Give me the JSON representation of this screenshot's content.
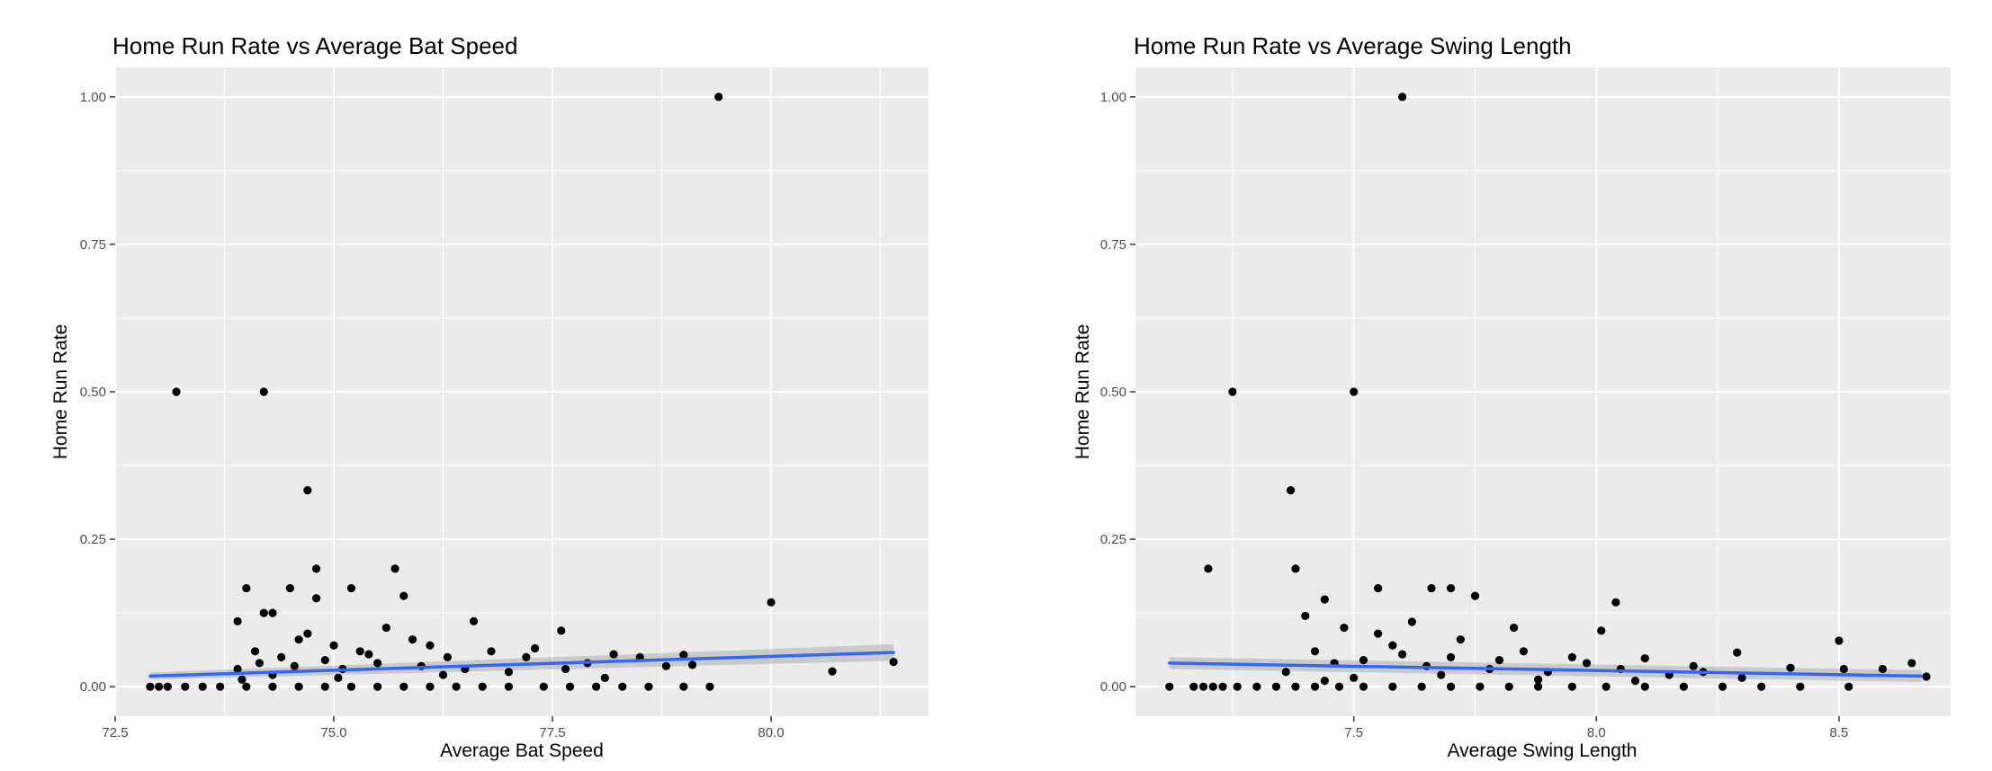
{
  "chart_data": [
    {
      "type": "scatter",
      "title": "Home Run Rate vs Average Bat Speed",
      "xlabel": "Average Bat Speed",
      "ylabel": "Home Run Rate",
      "xlim": [
        72.5,
        81.8
      ],
      "ylim": [
        -0.05,
        1.05
      ],
      "xticks": [
        "72.5",
        "75.0",
        "77.5",
        "80.0"
      ],
      "yticks": [
        "0.00",
        "0.25",
        "0.50",
        "0.75",
        "1.00"
      ],
      "grid": true,
      "fit_line": {
        "x": [
          72.9,
          81.4
        ],
        "y": [
          0.018,
          0.058
        ],
        "se_band": [
          0.006,
          0.014
        ]
      },
      "points": [
        [
          73.2,
          0.5
        ],
        [
          74.2,
          0.5
        ],
        [
          74.7,
          0.333
        ],
        [
          79.4,
          1.0
        ],
        [
          74.8,
          0.2
        ],
        [
          75.7,
          0.2
        ],
        [
          75.2,
          0.167
        ],
        [
          74.0,
          0.167
        ],
        [
          74.5,
          0.167
        ],
        [
          75.8,
          0.154
        ],
        [
          74.8,
          0.15
        ],
        [
          80.0,
          0.143
        ],
        [
          74.2,
          0.125
        ],
        [
          74.3,
          0.125
        ],
        [
          73.9,
          0.111
        ],
        [
          76.6,
          0.111
        ],
        [
          77.6,
          0.095
        ],
        [
          80.7,
          0.026
        ],
        [
          81.4,
          0.042
        ],
        [
          79.0,
          0.054
        ],
        [
          79.1,
          0.037
        ],
        [
          78.5,
          0.05
        ],
        [
          78.2,
          0.055
        ],
        [
          74.1,
          0.06
        ],
        [
          74.4,
          0.05
        ],
        [
          74.6,
          0.08
        ],
        [
          75.0,
          0.07
        ],
        [
          75.3,
          0.06
        ],
        [
          75.9,
          0.08
        ],
        [
          76.3,
          0.05
        ],
        [
          76.8,
          0.06
        ],
        [
          77.2,
          0.05
        ],
        [
          77.9,
          0.04
        ],
        [
          78.8,
          0.035
        ],
        [
          74.9,
          0.045
        ],
        [
          75.5,
          0.04
        ],
        [
          76.0,
          0.035
        ],
        [
          76.5,
          0.03
        ],
        [
          77.0,
          0.025
        ],
        [
          75.1,
          0.03
        ],
        [
          74.3,
          0.02
        ],
        [
          73.9,
          0.03
        ],
        [
          72.9,
          0.0
        ],
        [
          73.0,
          0.0
        ],
        [
          73.1,
          0.0
        ],
        [
          73.3,
          0.0
        ],
        [
          73.5,
          0.0
        ],
        [
          73.7,
          0.0
        ],
        [
          74.0,
          0.0
        ],
        [
          74.3,
          0.0
        ],
        [
          74.6,
          0.0
        ],
        [
          74.9,
          0.0
        ],
        [
          75.2,
          0.0
        ],
        [
          75.5,
          0.0
        ],
        [
          75.8,
          0.0
        ],
        [
          76.1,
          0.0
        ],
        [
          76.4,
          0.0
        ],
        [
          76.7,
          0.0
        ],
        [
          77.0,
          0.0
        ],
        [
          77.4,
          0.0
        ],
        [
          77.7,
          0.0
        ],
        [
          78.0,
          0.0
        ],
        [
          78.3,
          0.0
        ],
        [
          78.6,
          0.0
        ],
        [
          79.0,
          0.0
        ],
        [
          79.3,
          0.0
        ],
        [
          74.7,
          0.09
        ],
        [
          75.6,
          0.1
        ],
        [
          76.1,
          0.07
        ],
        [
          77.3,
          0.065
        ],
        [
          75.4,
          0.055
        ],
        [
          74.55,
          0.035
        ],
        [
          75.05,
          0.015
        ],
        [
          76.25,
          0.02
        ],
        [
          77.65,
          0.03
        ],
        [
          78.1,
          0.015
        ],
        [
          74.15,
          0.04
        ],
        [
          73.95,
          0.012
        ]
      ]
    },
    {
      "type": "scatter",
      "title": "Home Run Rate vs Average Swing Length",
      "xlabel": "Average Swing Length",
      "ylabel": "Home Run Rate",
      "xlim": [
        7.05,
        8.73
      ],
      "ylim": [
        -0.05,
        1.05
      ],
      "xticks": [
        "7.5",
        "8.0",
        "8.5"
      ],
      "yticks": [
        "0.00",
        "0.25",
        "0.50",
        "0.75",
        "1.00"
      ],
      "grid": true,
      "fit_line": {
        "x": [
          7.12,
          8.67
        ],
        "y": [
          0.04,
          0.018
        ],
        "se_band": [
          0.01,
          0.01
        ]
      },
      "points": [
        [
          7.6,
          1.0
        ],
        [
          7.25,
          0.5
        ],
        [
          7.5,
          0.5
        ],
        [
          7.37,
          0.333
        ],
        [
          7.2,
          0.2
        ],
        [
          7.38,
          0.2
        ],
        [
          7.55,
          0.167
        ],
        [
          7.66,
          0.167
        ],
        [
          7.7,
          0.167
        ],
        [
          7.75,
          0.154
        ],
        [
          7.44,
          0.148
        ],
        [
          8.04,
          0.143
        ],
        [
          7.4,
          0.12
        ],
        [
          7.48,
          0.1
        ],
        [
          7.62,
          0.11
        ],
        [
          7.83,
          0.1
        ],
        [
          8.01,
          0.095
        ],
        [
          8.5,
          0.078
        ],
        [
          8.65,
          0.04
        ],
        [
          8.68,
          0.017
        ],
        [
          8.59,
          0.03
        ],
        [
          8.51,
          0.03
        ],
        [
          8.4,
          0.032
        ],
        [
          8.29,
          0.058
        ],
        [
          8.2,
          0.035
        ],
        [
          8.1,
          0.048
        ],
        [
          7.95,
          0.05
        ],
        [
          7.85,
          0.06
        ],
        [
          7.7,
          0.05
        ],
        [
          7.58,
          0.07
        ],
        [
          7.52,
          0.045
        ],
        [
          7.46,
          0.04
        ],
        [
          7.65,
          0.035
        ],
        [
          7.78,
          0.03
        ],
        [
          7.9,
          0.025
        ],
        [
          8.05,
          0.03
        ],
        [
          8.15,
          0.02
        ],
        [
          8.3,
          0.015
        ],
        [
          7.42,
          0.06
        ],
        [
          7.55,
          0.09
        ],
        [
          7.72,
          0.08
        ],
        [
          7.12,
          0.0
        ],
        [
          7.17,
          0.0
        ],
        [
          7.19,
          0.0
        ],
        [
          7.21,
          0.0
        ],
        [
          7.23,
          0.0
        ],
        [
          7.26,
          0.0
        ],
        [
          7.3,
          0.0
        ],
        [
          7.34,
          0.0
        ],
        [
          7.38,
          0.0
        ],
        [
          7.42,
          0.0
        ],
        [
          7.47,
          0.0
        ],
        [
          7.52,
          0.0
        ],
        [
          7.58,
          0.0
        ],
        [
          7.64,
          0.0
        ],
        [
          7.7,
          0.0
        ],
        [
          7.76,
          0.0
        ],
        [
          7.82,
          0.0
        ],
        [
          7.88,
          0.0
        ],
        [
          7.95,
          0.0
        ],
        [
          8.02,
          0.0
        ],
        [
          8.1,
          0.0
        ],
        [
          8.18,
          0.0
        ],
        [
          8.26,
          0.0
        ],
        [
          8.34,
          0.0
        ],
        [
          8.42,
          0.0
        ],
        [
          8.52,
          0.0
        ],
        [
          7.6,
          0.055
        ],
        [
          7.8,
          0.045
        ],
        [
          7.98,
          0.04
        ],
        [
          7.68,
          0.02
        ],
        [
          7.5,
          0.015
        ],
        [
          7.88,
          0.012
        ],
        [
          8.08,
          0.01
        ],
        [
          8.22,
          0.025
        ],
        [
          7.36,
          0.025
        ],
        [
          7.44,
          0.01
        ]
      ]
    }
  ]
}
